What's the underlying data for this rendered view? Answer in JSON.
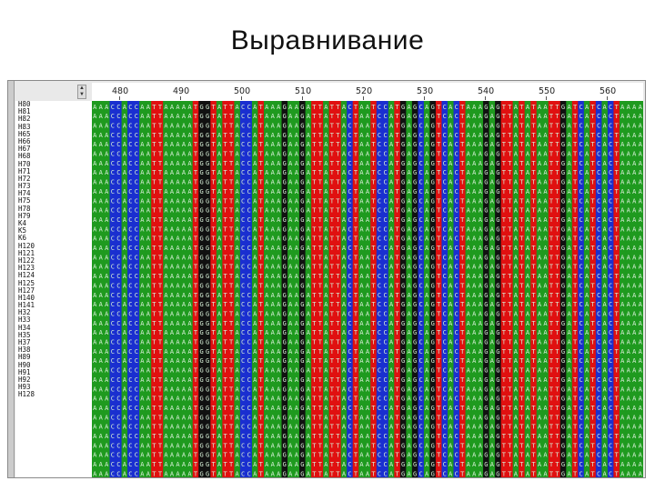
{
  "slide": {
    "title": "Выравнивание"
  },
  "ruler": {
    "labels": [
      "480",
      "490",
      "500",
      "510",
      "520",
      "530",
      "540",
      "550",
      "560"
    ]
  },
  "sequences": {
    "names": [
      "H80",
      "H81",
      "H82",
      "H83",
      "H65",
      "H66",
      "H67",
      "H68",
      "H70",
      "H71",
      "H72",
      "H73",
      "H74",
      "H75",
      "H78",
      "H79",
      "K4",
      "K5",
      "K6",
      "H120",
      "H121",
      "H122",
      "H123",
      "H124",
      "H125",
      "H127",
      "H140",
      "H141",
      "H32",
      "H33",
      "H34",
      "H35",
      "H37",
      "H38",
      "H89",
      "H90",
      "H91",
      "H92",
      "H93",
      "H128"
    ],
    "consensus": "AAACCACCAATTAAAAATGGTATTACCATAAAGAAGATTATTACTAATCCATGAGCAGTCACTAAAGAGTTATATAATTGATCATCACTAAAA"
  },
  "colors": {
    "A": "#1f9a1f",
    "T": "#e01010",
    "G": "#111111",
    "C": "#1a2fd0"
  }
}
